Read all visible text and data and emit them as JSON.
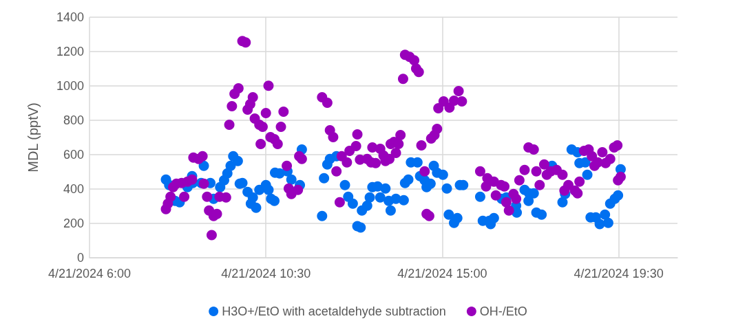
{
  "chart_data": {
    "type": "scatter",
    "ylabel": "MDL (pptV)",
    "marker": "circle",
    "grid": true,
    "legend": "bottom",
    "xlim": [
      "2024-04-21T06:00",
      "2024-04-21T21:00"
    ],
    "xticks": [
      {
        "value": "2024-04-21T06:00",
        "label": "4/21/2024 6:00"
      },
      {
        "value": "2024-04-21T10:30",
        "label": "4/21/2024 10:30"
      },
      {
        "value": "2024-04-21T15:00",
        "label": "4/21/2024 15:00"
      },
      {
        "value": "2024-04-21T19:30",
        "label": "4/21/2024 19:30"
      }
    ],
    "ylim": [
      0,
      1400
    ],
    "yticks": [
      0,
      200,
      400,
      600,
      800,
      1000,
      1200,
      1400
    ],
    "series": [
      {
        "name": "H3O+/EtO with acetaldehyde subtraction",
        "color": "#0070f0",
        "x": [
          "2024-04-21T07:57",
          "2024-04-21T08:02",
          "2024-04-21T08:11",
          "2024-04-21T08:18",
          "2024-04-21T08:30",
          "2024-04-21T08:37",
          "2024-04-21T08:38",
          "2024-04-21T08:55",
          "2024-04-21T08:51",
          "2024-04-21T09:05",
          "2024-04-21T09:10",
          "2024-04-21T09:20",
          "2024-04-21T09:26",
          "2024-04-21T09:31",
          "2024-04-21T09:36",
          "2024-04-21T09:40",
          "2024-04-21T09:47",
          "2024-04-21T09:50",
          "2024-04-21T09:54",
          "2024-04-21T10:02",
          "2024-04-21T10:10",
          "2024-04-21T10:07",
          "2024-04-21T10:15",
          "2024-04-21T10:20",
          "2024-04-21T10:30",
          "2024-04-21T10:34",
          "2024-04-21T10:38",
          "2024-04-21T10:43",
          "2024-04-21T10:44",
          "2024-04-21T10:51",
          "2024-04-21T11:03",
          "2024-04-21T11:09",
          "2024-04-21T11:22",
          "2024-04-21T11:25",
          "2024-04-21T11:56",
          "2024-04-21T11:59",
          "2024-04-21T12:04",
          "2024-04-21T12:08",
          "2024-04-21T12:18",
          "2024-04-21T12:31",
          "2024-04-21T12:36",
          "2024-04-21T12:43",
          "2024-04-21T12:50",
          "2024-04-21T12:55",
          "2024-04-21T12:57",
          "2024-04-21T13:05",
          "2024-04-21T13:09",
          "2024-04-21T13:13",
          "2024-04-21T13:21",
          "2024-04-21T13:25",
          "2024-04-21T13:33",
          "2024-04-21T13:38",
          "2024-04-21T13:41",
          "2024-04-21T13:49",
          "2024-04-21T14:01",
          "2024-04-21T14:03",
          "2024-04-21T14:08",
          "2024-04-21T14:12",
          "2024-04-21T14:22",
          "2024-04-21T14:26",
          "2024-04-21T14:33",
          "2024-04-21T14:36",
          "2024-04-21T14:42",
          "2024-04-21T14:47",
          "2024-04-21T14:52",
          "2024-04-21T15:01",
          "2024-04-21T15:07",
          "2024-04-21T15:10",
          "2024-04-21T15:18",
          "2024-04-21T15:23",
          "2024-04-21T15:27",
          "2024-04-21T15:32",
          "2024-04-21T15:58",
          "2024-04-21T16:02",
          "2024-04-21T16:12",
          "2024-04-21T16:14",
          "2024-04-21T16:19",
          "2024-04-21T16:31",
          "2024-04-21T16:38",
          "2024-04-21T16:53",
          "2024-04-21T16:54",
          "2024-04-21T17:06",
          "2024-04-21T17:13",
          "2024-04-21T17:20",
          "2024-04-21T17:12",
          "2024-04-21T17:24",
          "2024-04-21T17:32",
          "2024-04-21T17:37",
          "2024-04-21T17:48",
          "2024-04-21T17:59",
          "2024-04-21T18:04",
          "2024-04-21T18:08",
          "2024-04-21T18:14",
          "2024-04-21T18:18",
          "2024-04-21T18:27",
          "2024-04-21T18:30",
          "2024-04-21T18:39",
          "2024-04-21T18:42",
          "2024-04-21T18:47",
          "2024-04-21T18:55",
          "2024-04-21T19:01",
          "2024-04-21T19:09",
          "2024-04-21T19:14",
          "2024-04-21T19:17",
          "2024-04-21T19:24",
          "2024-04-21T19:29",
          "2024-04-21T19:33"
        ],
        "values": [
          455,
          423,
          331,
          323,
          411,
          475,
          435,
          535,
          435,
          435,
          343,
          411,
          451,
          491,
          535,
          591,
          563,
          431,
          435,
          383,
          351,
          315,
          291,
          395,
          423,
          395,
          343,
          331,
          495,
          491,
          503,
          455,
          423,
          630,
          243,
          463,
          543,
          575,
          591,
          423,
          355,
          315,
          184,
          176,
          275,
          303,
          351,
          411,
          415,
          351,
          403,
          331,
          275,
          343,
          335,
          435,
          455,
          555,
          555,
          475,
          451,
          411,
          431,
          535,
          495,
          483,
          403,
          251,
          203,
          231,
          423,
          423,
          355,
          215,
          215,
          196,
          231,
          343,
          351,
          303,
          263,
          395,
          375,
          375,
          331,
          263,
          251,
          null,
          535,
          null,
          323,
          371,
          null,
          630,
          614,
          551,
          555,
          483,
          235,
          235,
          196,
          251,
          203,
          315,
          343,
          363,
          515
        ]
      },
      {
        "name": "OH-/EtO",
        "color": "#9900bb",
        "x": [
          "2024-04-21T07:57",
          "2024-04-21T08:00",
          "2024-04-21T08:04",
          "2024-04-21T08:08",
          "2024-04-21T08:13",
          "2024-04-21T08:21",
          "2024-04-21T08:25",
          "2024-04-21T08:30",
          "2024-04-21T08:37",
          "2024-04-21T08:39",
          "2024-04-21T08:47",
          "2024-04-21T08:53",
          "2024-04-21T08:55",
          "2024-04-21T09:00",
          "2024-04-21T09:03",
          "2024-04-21T09:10",
          "2024-04-21T09:15",
          "2024-04-21T09:07",
          "2024-04-21T09:19",
          "2024-04-21T09:29",
          "2024-04-21T09:34",
          "2024-04-21T09:38",
          "2024-04-21T09:42",
          "2024-04-21T09:48",
          "2024-04-21T09:54",
          "2024-04-21T09:59",
          "2024-04-21T10:02",
          "2024-04-21T10:06",
          "2024-04-21T10:10",
          "2024-04-21T10:13",
          "2024-04-21T10:20",
          "2024-04-21T10:25",
          "2024-04-21T10:22",
          "2024-04-21T10:30",
          "2024-04-21T10:34",
          "2024-04-21T10:37",
          "2024-04-21T10:43",
          "2024-04-21T10:48",
          "2024-04-21T10:53",
          "2024-04-21T10:57",
          "2024-04-21T11:02",
          "2024-04-21T11:05",
          "2024-04-21T11:09",
          "2024-04-21T11:19",
          "2024-04-21T11:21",
          "2024-04-21T11:25",
          "2024-04-21T11:56",
          "2024-04-21T12:04",
          "2024-04-21T12:08",
          "2024-04-21T12:13",
          "2024-04-21T12:18",
          "2024-04-21T12:23",
          "2024-04-21T12:26",
          "2024-04-21T12:34",
          "2024-04-21T12:38",
          "2024-04-21T12:48",
          "2024-04-21T12:50",
          "2024-04-21T12:54",
          "2024-04-21T13:05",
          "2024-04-21T13:11",
          "2024-04-21T13:18",
          "2024-04-21T13:13",
          "2024-04-21T13:25",
          "2024-04-21T13:30",
          "2024-04-21T13:33",
          "2024-04-21T13:39",
          "2024-04-21T13:41",
          "2024-04-21T13:46",
          "2024-04-21T13:53",
          "2024-04-21T13:49",
          "2024-04-21T13:56",
          "2024-04-21T14:00",
          "2024-04-21T14:03",
          "2024-04-21T14:10",
          "2024-04-21T14:17",
          "2024-04-21T14:20",
          "2024-04-21T14:24",
          "2024-04-21T14:28",
          "2024-04-21T14:33",
          "2024-04-21T14:36",
          "2024-04-21T14:40",
          "2024-04-21T14:43",
          "2024-04-21T14:48",
          "2024-04-21T14:52",
          "2024-04-21T14:54",
          "2024-04-21T15:02",
          "2024-04-21T15:11",
          "2024-04-21T15:18",
          "2024-04-21T15:25",
          "2024-04-21T15:30",
          "2024-04-21T15:58",
          "2024-04-21T16:07",
          "2024-04-21T16:09",
          "2024-04-21T16:19",
          "2024-04-21T16:22",
          "2024-04-21T16:30",
          "2024-04-21T16:35",
          "2024-04-21T16:38",
          "2024-04-21T16:42",
          "2024-04-21T16:49",
          "2024-04-21T16:53",
          "2024-04-21T16:58",
          "2024-04-21T17:06",
          "2024-04-21T17:12",
          "2024-04-21T17:20",
          "2024-04-21T17:24",
          "2024-04-21T17:29",
          "2024-04-21T17:36",
          "2024-04-21T17:40",
          "2024-04-21T17:46",
          "2024-04-21T17:55",
          "2024-04-21T18:04",
          "2024-04-21T18:07",
          "2024-04-21T18:13",
          "2024-04-21T18:23",
          "2024-04-21T18:27",
          "2024-04-21T18:30",
          "2024-04-21T18:37",
          "2024-04-21T18:44",
          "2024-04-21T18:49",
          "2024-04-21T18:53",
          "2024-04-21T18:58",
          "2024-04-21T19:05",
          "2024-04-21T19:10",
          "2024-04-21T19:17",
          "2024-04-21T19:23",
          "2024-04-21T19:28",
          "2024-04-21T19:29",
          "2024-04-21T19:33"
        ],
        "values": [
          283,
          315,
          355,
          411,
          431,
          435,
          355,
          443,
          455,
          583,
          575,
          591,
          431,
          355,
          275,
          243,
          255,
          132,
          355,
          351,
          774,
          882,
          954,
          986,
          1261,
          1253,
          862,
          894,
          934,
          810,
          774,
          762,
          662,
          842,
          1001,
          702,
          690,
          662,
          762,
          850,
          535,
          403,
          371,
          395,
          591,
          575,
          934,
          902,
          742,
          702,
          503,
          323,
          591,
          555,
          622,
          650,
          718,
          571,
          575,
          555,
          551,
          642,
          634,
          595,
          563,
          575,
          662,
          674,
          662,
          610,
          714,
          1041,
          1181,
          1169,
          1149,
          1101,
          1081,
          654,
          503,
          255,
          243,
          694,
          714,
          750,
          870,
          910,
          874,
          914,
          970,
          910,
          503,
          415,
          463,
          443,
          363,
          423,
          415,
          323,
          275,
          371,
          343,
          451,
          511,
          642,
          630,
          503,
          423,
          543,
          483,
          503,
          511,
          483,
          391,
          423,
          391,
          375,
          443,
          622,
          630,
          591,
          535,
          555,
          614,
          551,
          575,
          642,
          654,
          451,
          471
        ]
      }
    ]
  }
}
